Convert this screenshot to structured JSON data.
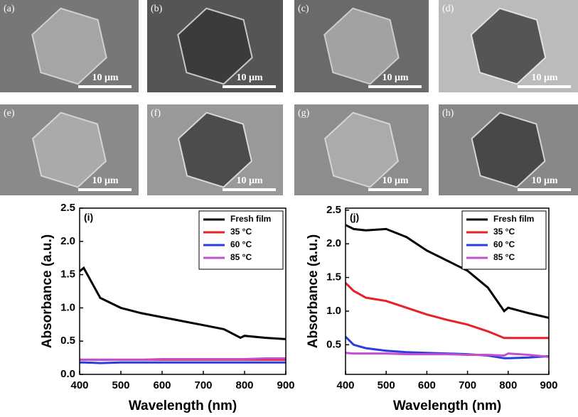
{
  "images": [
    {
      "label": "(a)",
      "scale": "10 μm"
    },
    {
      "label": "(b)",
      "scale": "10 μm"
    },
    {
      "label": "(c)",
      "scale": "10 μm"
    },
    {
      "label": "(d)",
      "scale": "10 μm"
    },
    {
      "label": "(e)",
      "scale": "10 μm"
    },
    {
      "label": "(f)",
      "scale": "10 μm"
    },
    {
      "label": "(g)",
      "scale": "10 μm"
    },
    {
      "label": "(h)",
      "scale": "10 μm"
    }
  ],
  "chart_data": [
    {
      "type": "line",
      "label": "(i)",
      "xlabel": "Wavelength (nm)",
      "ylabel": "Absorbance (a.u.)",
      "x": [
        400,
        410,
        450,
        500,
        550,
        600,
        650,
        700,
        750,
        790,
        800,
        850,
        900
      ],
      "xlim": [
        400,
        900
      ],
      "xticks": [
        400,
        500,
        600,
        700,
        800,
        900
      ],
      "ylim": [
        0,
        2.5
      ],
      "yticks": [
        {
          "value": 0,
          "label": "0.0"
        },
        0.5,
        {
          "value": 1,
          "label": "1.0"
        },
        1.5,
        {
          "value": 2,
          "label": "2.0"
        },
        2.5
      ],
      "legend": "upper right",
      "series": [
        {
          "name": "Fresh film",
          "color": "#000000",
          "values": [
            1.55,
            1.6,
            1.15,
            1.0,
            0.92,
            0.86,
            0.8,
            0.74,
            0.68,
            0.55,
            0.58,
            0.55,
            0.53
          ]
        },
        {
          "name": "35 °C",
          "color": "#e8202a",
          "values": [
            0.22,
            0.22,
            0.22,
            0.22,
            0.22,
            0.22,
            0.22,
            0.22,
            0.22,
            0.22,
            0.22,
            0.22,
            0.22
          ]
        },
        {
          "name": "60 °C",
          "color": "#2a3ee0",
          "values": [
            0.18,
            0.18,
            0.17,
            0.18,
            0.18,
            0.18,
            0.18,
            0.18,
            0.18,
            0.18,
            0.18,
            0.18,
            0.18
          ]
        },
        {
          "name": "85 °C",
          "color": "#c050d0",
          "values": [
            0.22,
            0.22,
            0.22,
            0.22,
            0.22,
            0.23,
            0.23,
            0.23,
            0.23,
            0.23,
            0.23,
            0.24,
            0.24
          ]
        }
      ]
    },
    {
      "type": "line",
      "label": "(j)",
      "xlabel": "Wavelength (nm)",
      "ylabel": "Absorbance (a.u.)",
      "x": [
        400,
        420,
        450,
        500,
        550,
        600,
        650,
        700,
        750,
        790,
        800,
        850,
        900
      ],
      "xlim": [
        400,
        900
      ],
      "xticks": [
        400,
        500,
        600,
        700,
        800,
        900
      ],
      "ylim": [
        0.06,
        2.53
      ],
      "yticks": [
        0.5,
        {
          "value": 1,
          "label": "1.0"
        },
        1.5,
        {
          "value": 2,
          "label": "2.0"
        },
        2.5
      ],
      "legend": "upper right",
      "series": [
        {
          "name": "Fresh film",
          "color": "#000000",
          "values": [
            2.28,
            2.22,
            2.2,
            2.22,
            2.1,
            1.9,
            1.75,
            1.6,
            1.35,
            1.0,
            1.05,
            0.97,
            0.9
          ]
        },
        {
          "name": "35 °C",
          "color": "#e8202a",
          "values": [
            1.42,
            1.3,
            1.2,
            1.15,
            1.05,
            0.95,
            0.87,
            0.8,
            0.7,
            0.6,
            0.6,
            0.6,
            0.6
          ]
        },
        {
          "name": "60 °C",
          "color": "#2a3ee0",
          "values": [
            0.62,
            0.5,
            0.45,
            0.41,
            0.39,
            0.38,
            0.37,
            0.36,
            0.34,
            0.3,
            0.3,
            0.31,
            0.33
          ]
        },
        {
          "name": "85 °C",
          "color": "#c050d0",
          "values": [
            0.38,
            0.37,
            0.37,
            0.37,
            0.36,
            0.36,
            0.36,
            0.35,
            0.35,
            0.34,
            0.37,
            0.35,
            0.32
          ]
        }
      ]
    }
  ]
}
